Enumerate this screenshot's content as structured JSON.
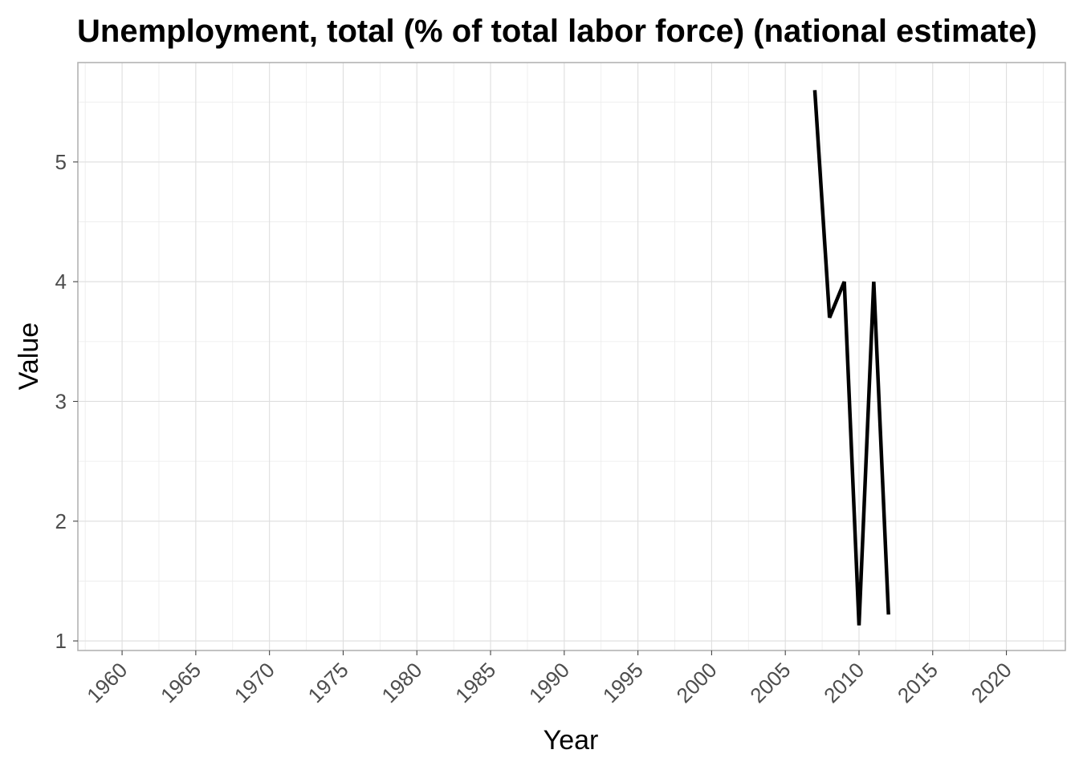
{
  "chart_data": {
    "type": "line",
    "title": "Unemployment, total (% of total labor force) (national estimate)",
    "xlabel": "Year",
    "ylabel": "Value",
    "xlim": [
      1957,
      2024
    ],
    "ylim": [
      0.92,
      5.83
    ],
    "x_ticks": [
      1960,
      1965,
      1970,
      1975,
      1980,
      1985,
      1990,
      1995,
      2000,
      2005,
      2010,
      2015,
      2020
    ],
    "y_ticks": [
      1,
      2,
      3,
      4,
      5
    ],
    "grid": true,
    "legend": "none",
    "series": [
      {
        "color": "#000000",
        "x": [
          2007,
          2008,
          2009,
          2010,
          2011,
          2012
        ],
        "y": [
          5.6,
          3.7,
          4.0,
          1.13,
          4.0,
          1.22
        ]
      }
    ]
  }
}
